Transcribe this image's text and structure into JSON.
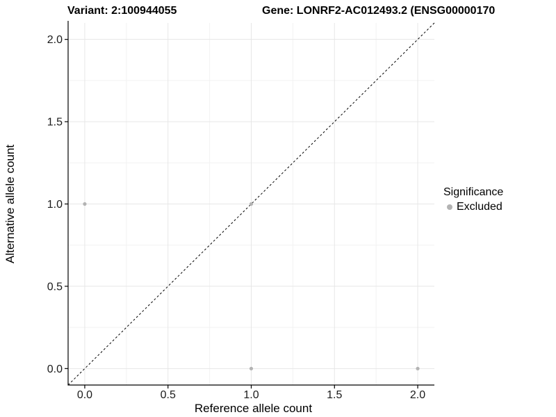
{
  "titles": {
    "variant": "Variant: 2:100944055",
    "gene": "Gene: LONRF2-AC012493.2 (ENSG00000170"
  },
  "chart_data": {
    "type": "scatter",
    "xlabel": "Reference allele count",
    "ylabel": "Alternative allele count",
    "xlim": [
      -0.1,
      2.1
    ],
    "ylim": [
      -0.1,
      2.1
    ],
    "x_major_ticks": [
      0.0,
      0.5,
      1.0,
      1.5,
      2.0
    ],
    "y_major_ticks": [
      0.0,
      0.5,
      1.0,
      1.5,
      2.0
    ],
    "x_tick_labels": [
      "0.0",
      "0.5",
      "1.0",
      "1.5",
      "2.0"
    ],
    "y_tick_labels": [
      "0.0",
      "0.5",
      "1.0",
      "1.5",
      "2.0"
    ],
    "x_minor_ticks": [
      0.25,
      0.75,
      1.25,
      1.75
    ],
    "y_minor_ticks": [
      0.25,
      0.75,
      1.25,
      1.75
    ],
    "grid": {
      "major_color": "#e6e6e6",
      "minor_color": "#f2f2f2"
    },
    "reference_line": {
      "style": "dashed",
      "from_x": -0.1,
      "from_y": -0.1,
      "to_x": 2.1,
      "to_y": 2.1,
      "color": "#000000"
    },
    "series": [
      {
        "name": "Excluded",
        "color": "#b3b3b3",
        "points": [
          {
            "x": 0.0,
            "y": 1.0
          },
          {
            "x": 1.0,
            "y": 1.0
          },
          {
            "x": 1.0,
            "y": 0.0
          },
          {
            "x": 2.0,
            "y": 0.0
          }
        ]
      }
    ],
    "legend": {
      "title": "Significance",
      "position": "right",
      "entries": [
        {
          "label": "Excluded",
          "color": "#b3b3b3"
        }
      ]
    },
    "axis_color": "#000000",
    "tick_label_color": "#1a1a1a"
  }
}
